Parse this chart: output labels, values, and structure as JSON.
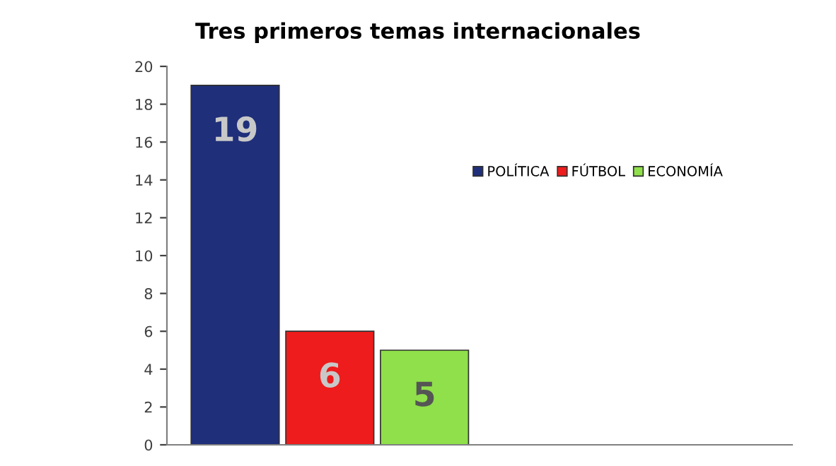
{
  "chart_data": {
    "type": "bar",
    "title": "Tres primeros temas internacionales",
    "categories": [
      null
    ],
    "series": [
      {
        "name": "POLÍTICA",
        "color": "#1f2f7a",
        "values": [
          19
        ]
      },
      {
        "name": "FÚTBOL",
        "color": "#ee1c1c",
        "values": [
          6
        ]
      },
      {
        "name": "ECONOMÍA",
        "color": "#8fe04a",
        "values": [
          5
        ]
      }
    ],
    "ylim": [
      0,
      20
    ],
    "yticks": [
      0,
      2,
      4,
      6,
      8,
      10,
      12,
      14,
      16,
      18,
      20
    ],
    "grid": false,
    "legend": "right",
    "data_labels": true
  }
}
